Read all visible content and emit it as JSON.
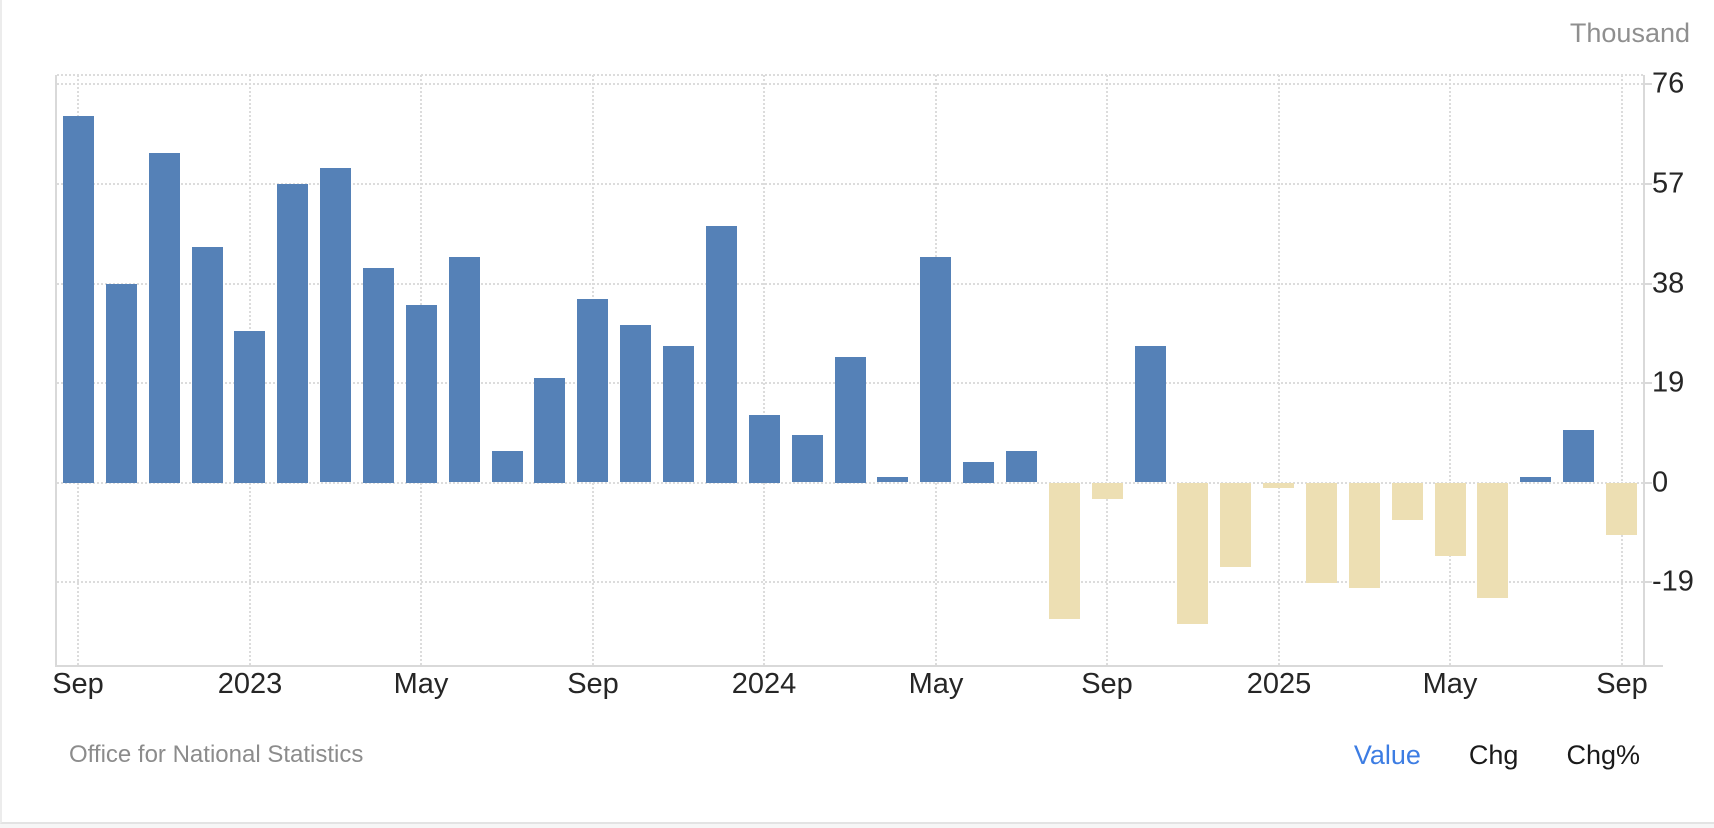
{
  "unit_label": "Thousand",
  "source": "Office for National Statistics",
  "legend": {
    "items": [
      {
        "label": "Value",
        "active": true
      },
      {
        "label": "Chg",
        "active": false
      },
      {
        "label": "Chg%",
        "active": false
      }
    ]
  },
  "chart_data": {
    "type": "bar",
    "title": "",
    "unit": "Thousand",
    "categories": [
      "Sep 2022",
      "Oct 2022",
      "Nov 2022",
      "Dec 2022",
      "Jan 2023",
      "Feb 2023",
      "Mar 2023",
      "Apr 2023",
      "May 2023",
      "Jun 2023",
      "Jul 2023",
      "Aug 2023",
      "Sep 2023",
      "Oct 2023",
      "Nov 2023",
      "Dec 2023",
      "Jan 2024",
      "Feb 2024",
      "Mar 2024",
      "Apr 2024",
      "May 2024",
      "Jun 2024",
      "Jul 2024",
      "Aug 2024",
      "Sep 2024",
      "Oct 2024",
      "Nov 2024",
      "Dec 2024",
      "Jan 2025",
      "Feb 2025",
      "Mar 2025",
      "Apr 2025",
      "May 2025",
      "Jun 2025",
      "Jul 2025",
      "Aug 2025",
      "Sep 2025"
    ],
    "values": [
      70,
      38,
      63,
      45,
      29,
      57,
      60,
      41,
      34,
      43,
      6,
      20,
      35,
      30,
      26,
      49,
      13,
      9,
      24,
      1,
      43,
      4,
      6,
      -26,
      -3,
      26,
      -27,
      -16,
      -1,
      -19,
      -20,
      -7,
      -14,
      -22,
      1,
      10,
      -10
    ],
    "y_axis": {
      "ticks": [
        76,
        57,
        38,
        19,
        0,
        -19
      ],
      "max": 77.8,
      "min": -34.8,
      "unit": "Thousand"
    },
    "x_axis": {
      "tick_labels": [
        "Sep",
        "2023",
        "May",
        "Sep",
        "2024",
        "May",
        "Sep",
        "2025",
        "May",
        "Sep"
      ],
      "tick_category_indexes": [
        0,
        4,
        8,
        12,
        16,
        20,
        24,
        28,
        32,
        36
      ]
    },
    "colors": {
      "positive": "#5581B7",
      "negative": "#EDDFB3"
    },
    "grid": "dotted",
    "legend_position": "bottom-right"
  }
}
